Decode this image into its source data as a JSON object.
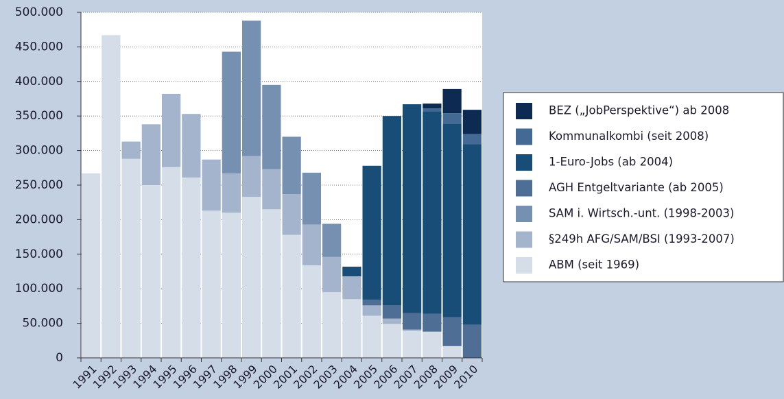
{
  "chart_data": {
    "type": "stacked_bar",
    "categories": [
      "1991",
      "1992",
      "1993",
      "1994",
      "1995",
      "1996",
      "1997",
      "1998",
      "1999",
      "2000",
      "2001",
      "2002",
      "2003",
      "2004",
      "2005",
      "2006",
      "2007",
      "2008",
      "2009",
      "2010"
    ],
    "series": [
      {
        "name": "ABM (seit 1969)",
        "color": "#d4dde8",
        "values": [
          267000,
          467000,
          288000,
          250000,
          276000,
          261000,
          213000,
          210000,
          233000,
          215000,
          178000,
          134000,
          95000,
          85000,
          61000,
          49000,
          39000,
          38000,
          17000,
          null
        ]
      },
      {
        "name": "§249h AFG/SAM/BSI (1993-2007)",
        "color": "#a3b4cc",
        "values": [
          null,
          null,
          25000,
          88000,
          106000,
          92000,
          74000,
          57000,
          59000,
          58000,
          59000,
          59000,
          51000,
          33000,
          15000,
          8000,
          2000,
          null,
          null,
          null
        ]
      },
      {
        "name": "SAM i. Wirtsch.-unt. (1998-2003)",
        "color": "#7590b0",
        "values": [
          null,
          null,
          null,
          null,
          null,
          null,
          null,
          176000,
          196000,
          122000,
          83000,
          75000,
          48000,
          null,
          null,
          null,
          null,
          null,
          null,
          null
        ]
      },
      {
        "name": "AGH Entgeltvariante (ab 2005)",
        "color": "#4e6e96",
        "values": [
          null,
          null,
          null,
          null,
          null,
          null,
          null,
          null,
          null,
          null,
          null,
          null,
          null,
          null,
          8000,
          19000,
          24000,
          26000,
          42000,
          48000
        ]
      },
      {
        "name": "1-Euro-Jobs (ab 2004)",
        "color": "#174d77",
        "values": [
          null,
          null,
          null,
          null,
          null,
          null,
          null,
          null,
          null,
          null,
          null,
          null,
          null,
          14000,
          194000,
          274000,
          302000,
          293000,
          280000,
          261000
        ]
      },
      {
        "name": "Kommunalkombi (seit 2008)",
        "color": "#436a94",
        "values": [
          null,
          null,
          null,
          null,
          null,
          null,
          null,
          null,
          null,
          null,
          null,
          null,
          null,
          null,
          null,
          null,
          null,
          4000,
          15000,
          15000
        ]
      },
      {
        "name": "BEZ („JobPerspektive“) ab 2008",
        "color": "#0d2b52",
        "values": [
          null,
          null,
          null,
          null,
          null,
          null,
          null,
          null,
          null,
          null,
          null,
          null,
          null,
          null,
          null,
          null,
          null,
          7000,
          35000,
          35000
        ]
      }
    ],
    "ylim": [
      0,
      500000
    ],
    "yticks": [
      0,
      {
        "value": 50000,
        "label": "50.000"
      },
      {
        "value": 100000,
        "label": "100.000"
      },
      {
        "value": 150000,
        "label": "150.000"
      },
      {
        "value": 200000,
        "label": "200.000"
      },
      {
        "value": 250000,
        "label": "250.000"
      },
      {
        "value": 300000,
        "label": "300.000"
      },
      {
        "value": 350000,
        "label": "350.000"
      },
      {
        "value": 400000,
        "label": "400.000"
      },
      {
        "value": 450000,
        "label": "450.000"
      },
      {
        "value": 500000,
        "label": "500.000"
      }
    ],
    "grid": true,
    "legend": "right"
  }
}
